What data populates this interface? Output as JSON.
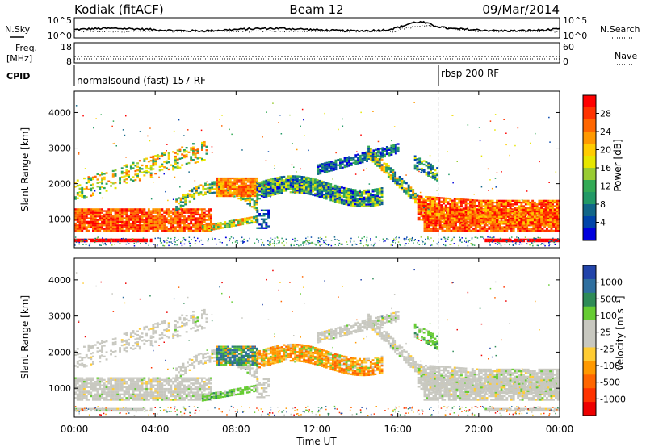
{
  "header": {
    "station": "Kodiak (fitACF)",
    "beam": "Beam 12",
    "date": "09/Mar/2014"
  },
  "top_panels": {
    "nsky_label": "N.Sky",
    "nsky_ticks": [
      "10^5",
      "10^0"
    ],
    "nsearch_label": "N.Search",
    "nsearch_ticks": [
      "10^5",
      "10^0"
    ],
    "freq_label_1": "Freq.",
    "freq_label_2": "[MHz]",
    "freq_ticks": [
      "18",
      "8"
    ],
    "nave_label": "Nave",
    "nave_ticks": [
      "60",
      "0"
    ],
    "cpid_label": "CPID",
    "cpid_segments": [
      {
        "text": "normalsound (fast) 157 RF",
        "start_hour": 0
      },
      {
        "text": "rbsp 200 RF",
        "start_hour": 18
      }
    ]
  },
  "chart_data": [
    {
      "type": "heatmap",
      "name": "Power",
      "ylabel": "Slant Range [km]",
      "yticks": [
        1000,
        2000,
        3000,
        4000
      ],
      "ylim": [
        200,
        4600
      ],
      "xlim": [
        0,
        24
      ],
      "colorbar_label": "Power [dB]",
      "colorbar_ticks": [
        "28",
        "24",
        "20",
        "16",
        "12",
        "8",
        "4"
      ],
      "colorbar_colors": [
        "#ff0000",
        "#ff3300",
        "#ff6600",
        "#ff9900",
        "#ffcc00",
        "#e6e600",
        "#99cc33",
        "#33aa55",
        "#229966",
        "#116688",
        "#0044aa",
        "#0000dd"
      ]
    },
    {
      "type": "heatmap",
      "name": "Velocity",
      "ylabel": "Slant Range [km]",
      "yticks": [
        1000,
        2000,
        3000,
        4000
      ],
      "ylim": [
        200,
        4600
      ],
      "xlim": [
        0,
        24
      ],
      "colorbar_label": "Velocity [m s⁻¹]",
      "colorbar_ticks": [
        "1000",
        "500",
        "100",
        "25",
        "-25",
        "-100",
        "-500",
        "-1000"
      ],
      "colorbar_colors": [
        "#2244aa",
        "#2f6f9f",
        "#2e8b57",
        "#66cc33",
        "#c8c8c0",
        "#c8c8c0",
        "#ffcc33",
        "#ff9900",
        "#ff6600",
        "#ff3300",
        "#ee0000"
      ]
    }
  ],
  "xaxis": {
    "ticks": [
      "00:00",
      "04:00",
      "08:00",
      "12:00",
      "16:00",
      "20:00",
      "00:00"
    ],
    "label": "Time UT"
  }
}
